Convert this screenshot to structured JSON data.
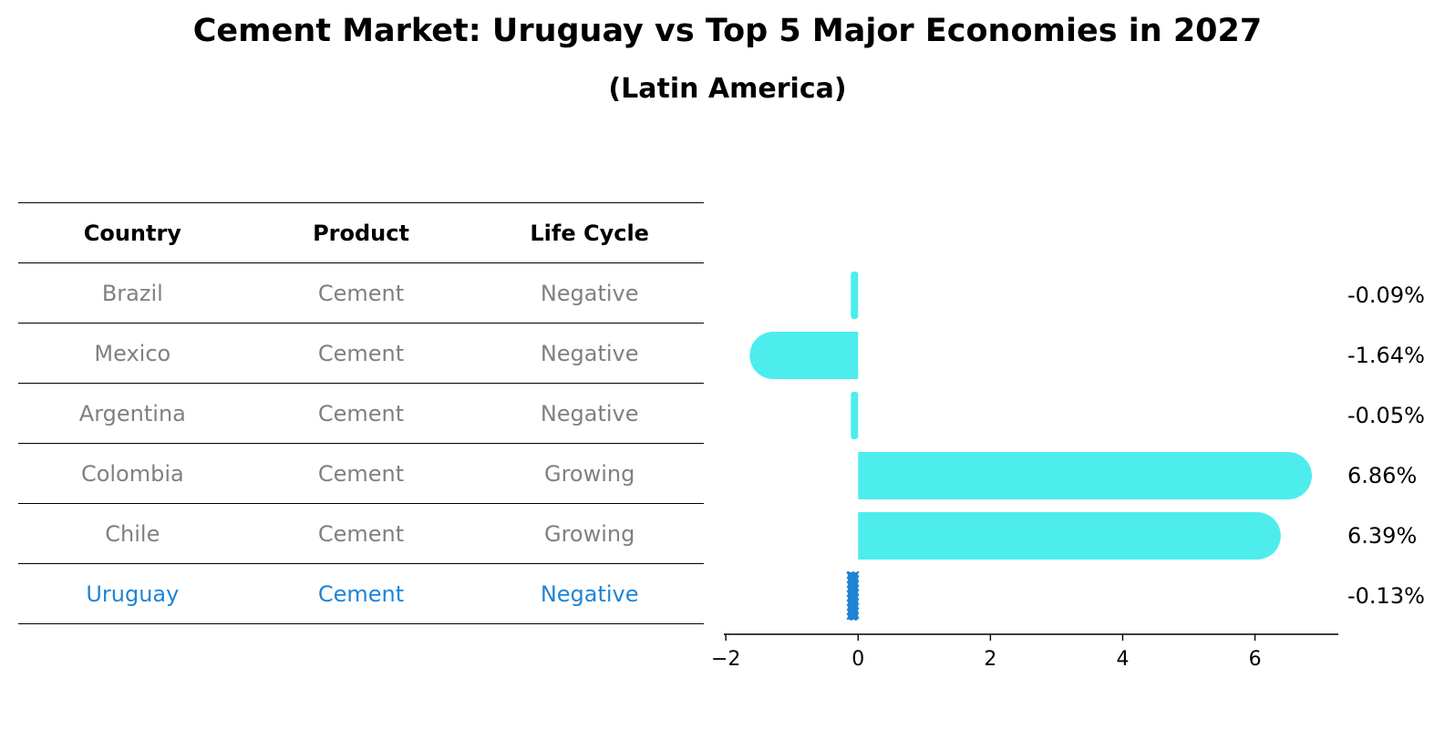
{
  "title": "Cement Market: Uruguay vs Top 5 Major Economies in 2027",
  "subtitle": "(Latin America)",
  "table": {
    "headers": [
      "Country",
      "Product",
      "Life Cycle"
    ],
    "rows": [
      [
        "Brazil",
        "Cement",
        "Negative"
      ],
      [
        "Mexico",
        "Cement",
        "Negative"
      ],
      [
        "Argentina",
        "Cement",
        "Negative"
      ],
      [
        "Colombia",
        "Cement",
        "Growing"
      ],
      [
        "Chile",
        "Cement",
        "Growing"
      ],
      [
        "Uruguay",
        "Cement",
        "Negative"
      ]
    ],
    "highlight_row": "Uruguay"
  },
  "colors": {
    "bar": "#4deded",
    "highlight": "#1f84d6",
    "muted_text": "#808080"
  },
  "chart_data": {
    "type": "bar",
    "orientation": "horizontal",
    "categories": [
      "Brazil",
      "Mexico",
      "Argentina",
      "Colombia",
      "Chile",
      "Uruguay"
    ],
    "values": [
      -0.09,
      -1.64,
      -0.05,
      6.86,
      6.39,
      -0.13
    ],
    "labels": [
      "-0.09%",
      "-1.64%",
      "-0.05%",
      "6.86%",
      "6.39%",
      "-0.13%"
    ],
    "highlight": "Uruguay",
    "xlim": [
      -2.03,
      7.26
    ],
    "xticks": [
      -2,
      0,
      2,
      4,
      6
    ],
    "xtick_labels": [
      "−2",
      "0",
      "2",
      "4",
      "6"
    ],
    "grid": false
  }
}
